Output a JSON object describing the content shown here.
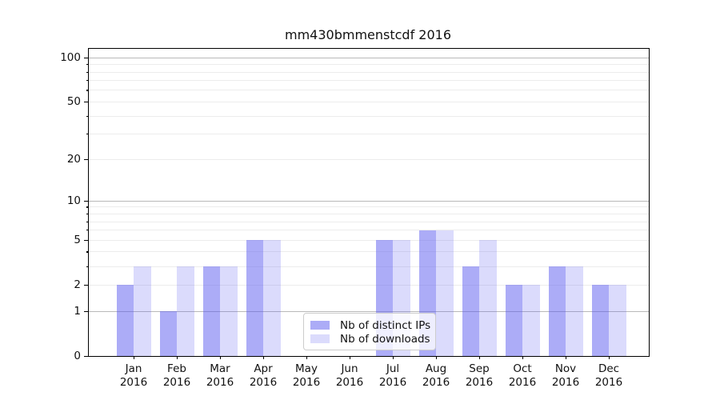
{
  "title": "mm430bmmenstcdf 2016",
  "chart_data": {
    "type": "bar",
    "title": "mm430bmmenstcdf 2016",
    "x_categories": [
      "Jan",
      "Feb",
      "Mar",
      "Apr",
      "May",
      "Jun",
      "Jul",
      "Aug",
      "Sep",
      "Oct",
      "Nov",
      "Dec"
    ],
    "x_year": "2016",
    "series": [
      {
        "name": "Nb of distinct IPs",
        "color": "rgba(90,90,240,0.5)",
        "values": [
          2,
          1,
          3,
          5,
          0,
          0,
          5,
          6,
          3,
          2,
          3,
          2
        ]
      },
      {
        "name": "Nb of downloads",
        "color": "rgba(90,90,240,0.22)",
        "values": [
          3,
          3,
          3,
          5,
          0,
          0,
          5,
          6,
          5,
          2,
          3,
          2
        ]
      }
    ],
    "y_scale": "log1p",
    "y_axis_top_value": 115,
    "y_major_ticks": [
      0,
      1,
      2,
      5,
      10,
      20,
      50,
      100
    ],
    "y_minor_ticks": [
      3,
      4,
      6,
      7,
      8,
      9,
      30,
      40,
      60,
      70,
      80,
      90
    ],
    "y_dark_gridlines": [
      1,
      10,
      100
    ],
    "grid": true,
    "legend_position": "lower-center-inside"
  },
  "colors": {
    "background": "#ffffff",
    "bar_distinct_ips": "rgba(90,90,240,0.5)",
    "bar_downloads": "rgba(90,90,240,0.22)",
    "grid_major": "#b9b9b9",
    "grid_minor": "#ececec",
    "axis": "#000000",
    "text": "#111111",
    "legend_border": "#cccccc"
  }
}
